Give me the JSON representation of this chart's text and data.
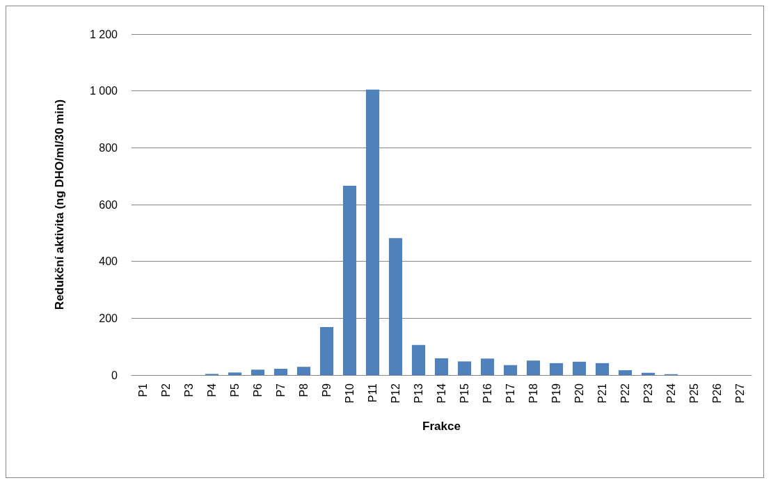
{
  "chart_data": {
    "type": "bar",
    "xlabel": "Frakce",
    "ylabel": "Redukční aktivita (ng DHO/ml/30 min)",
    "categories": [
      "P1",
      "P2",
      "P3",
      "P4",
      "P5",
      "P6",
      "P7",
      "P8",
      "P9",
      "P10",
      "P11",
      "P12",
      "P13",
      "P14",
      "P15",
      "P16",
      "P17",
      "P18",
      "P19",
      "P20",
      "P21",
      "P22",
      "P23",
      "P24",
      "P25",
      "P26",
      "P27"
    ],
    "values": [
      0,
      0,
      0,
      4,
      9,
      19,
      22,
      29,
      169,
      666,
      1005,
      482,
      106,
      59,
      48,
      58,
      35,
      51,
      42,
      47,
      42,
      17,
      8,
      3,
      0,
      0,
      0
    ],
    "color": "#4f81bd",
    "ylim": [
      0,
      1200
    ],
    "yticks": [
      {
        "value": 0,
        "label": "0"
      },
      {
        "value": 200,
        "label": "200"
      },
      {
        "value": 400,
        "label": "400"
      },
      {
        "value": 600,
        "label": "600"
      },
      {
        "value": 800,
        "label": "800"
      },
      {
        "value": 1000,
        "label": "1 000"
      },
      {
        "value": 1200,
        "label": "1 200"
      }
    ],
    "grid": "y"
  }
}
